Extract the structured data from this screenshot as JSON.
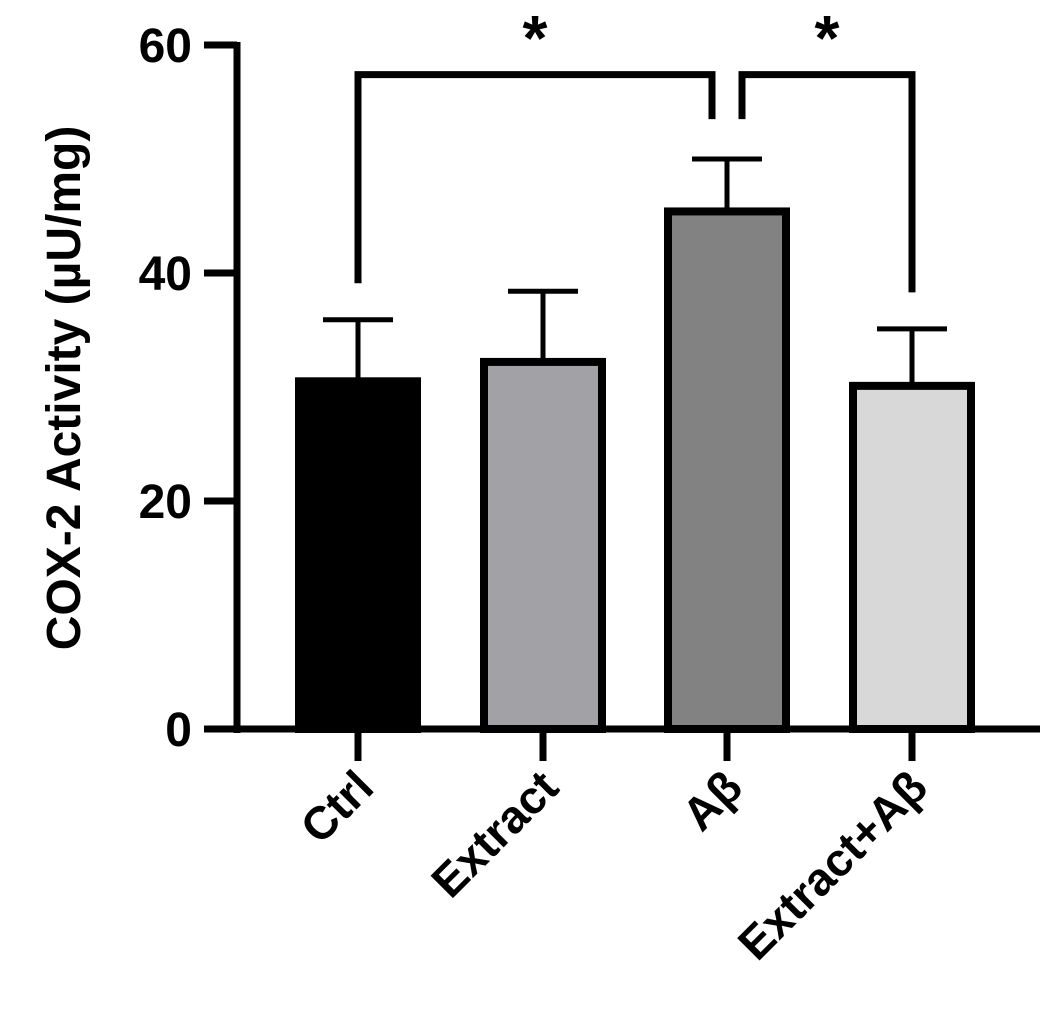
{
  "chart_data": {
    "type": "bar",
    "categories": [
      "Ctrl",
      "Extract",
      "Aβ",
      "Extract+Aβ"
    ],
    "values": [
      30.5,
      32.2,
      45.4,
      30.1
    ],
    "errors": [
      5.4,
      6.2,
      4.6,
      5.0
    ],
    "colors": [
      "#000000",
      "#a2a2a6",
      "#828282",
      "#d8d8d8"
    ],
    "ylabel": "COX-2 Activity (µU/mg)",
    "xlabel": "",
    "title": "",
    "ylim": [
      0,
      60
    ],
    "yticks": [
      0,
      20,
      40,
      60
    ],
    "grid": false,
    "significance": [
      {
        "from": 0,
        "to": 2,
        "label": "*"
      },
      {
        "from": 2,
        "to": 3,
        "label": "*"
      }
    ]
  }
}
